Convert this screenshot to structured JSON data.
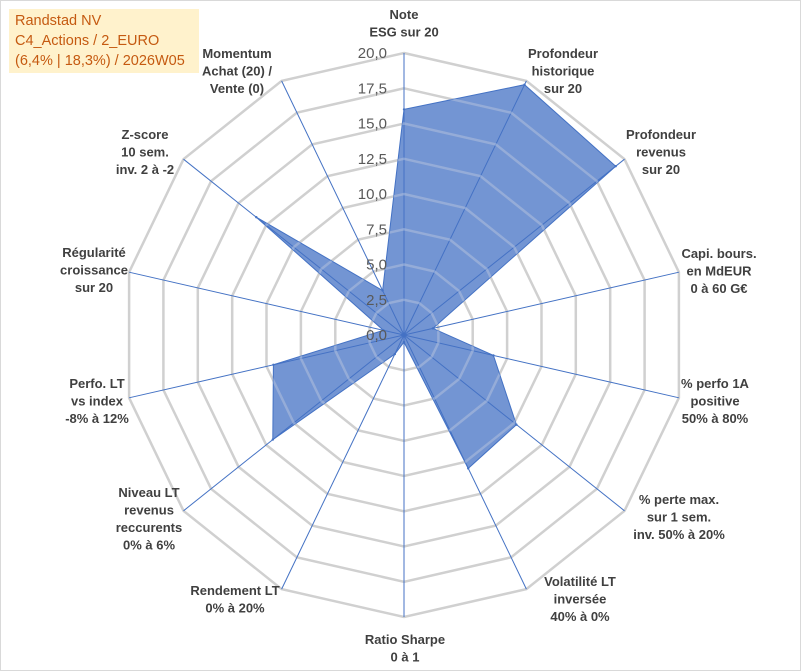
{
  "chart_data": {
    "type": "radar",
    "title": [
      "Randstad NV",
      "C4_Actions / 2_EURO",
      "(6,4% | 18,3%) / 2026W05"
    ],
    "axes": [
      {
        "label": [
          "Note",
          "ESG sur 20"
        ]
      },
      {
        "label": [
          "Profondeur",
          "historique",
          "sur 20"
        ]
      },
      {
        "label": [
          "Profondeur",
          "revenus",
          "sur 20"
        ]
      },
      {
        "label": [
          "Capi. bours.",
          "en MdEUR",
          "0 à 60 G€"
        ]
      },
      {
        "label": [
          "% perfo 1A",
          "positive",
          "50% à 80%"
        ]
      },
      {
        "label": [
          "% perte max.",
          "sur 1 sem.",
          "inv. 50% à 20%"
        ]
      },
      {
        "label": [
          "Volatilité LT",
          "inversée",
          "40% à 0%"
        ]
      },
      {
        "label": [
          "Ratio Sharpe",
          "0 à 1"
        ]
      },
      {
        "label": [
          "Rendement LT",
          "0% à 20%"
        ]
      },
      {
        "label": [
          "Niveau LT",
          "revenus",
          "reccurents",
          "0% à 6%"
        ]
      },
      {
        "label": [
          "Perfo. LT",
          "vs index",
          "-8% à 12%"
        ]
      },
      {
        "label": [
          "Régularité",
          "croissance",
          "sur 20"
        ]
      },
      {
        "label": [
          "Z-score",
          "10 sem.",
          "inv. 2 à -2"
        ]
      },
      {
        "label": [
          "Momentum",
          "Achat (20) /",
          "Vente (0)"
        ]
      }
    ],
    "series": [
      {
        "values": [
          16.0,
          19.7,
          19.2,
          2.1,
          6.5,
          10.2,
          10.5,
          0.5,
          1.5,
          11.9,
          9.5,
          1.5,
          13.4,
          3.5
        ]
      }
    ],
    "rlim": [
      0,
      20
    ],
    "ticks": [
      0,
      2.5,
      5,
      7.5,
      10,
      12.5,
      15,
      17.5,
      20
    ],
    "tick_labels": [
      "0,0",
      "2,5",
      "5,0",
      "7,5",
      "10,0",
      "12,5",
      "15,0",
      "17,5",
      "20,0"
    ],
    "grid": true,
    "colors": {
      "area": "#4472C4",
      "spokes": "#4472C4",
      "grid": "#D0D0D0",
      "axis_text": "#404040",
      "tick_text": "#595959",
      "title_text": "#C55A11",
      "title_background": "#FFF2CC"
    }
  }
}
